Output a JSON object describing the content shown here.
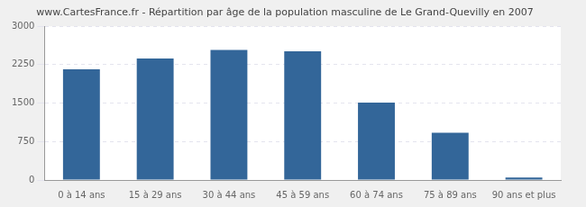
{
  "chart_data": {
    "type": "bar",
    "title": "www.CartesFrance.fr - Répartition par âge de la population masculine de Le Grand-Quevilly en 2007",
    "categories": [
      "0 à 14 ans",
      "15 à 29 ans",
      "30 à 44 ans",
      "45 à 59 ans",
      "60 à 74 ans",
      "75 à 89 ans",
      "90 ans et plus"
    ],
    "values": [
      2160,
      2370,
      2540,
      2510,
      1510,
      920,
      50
    ],
    "color": "#336699",
    "ylim": [
      0,
      3000
    ],
    "yticks": [
      0,
      750,
      1500,
      2250,
      3000
    ],
    "grid": true
  }
}
